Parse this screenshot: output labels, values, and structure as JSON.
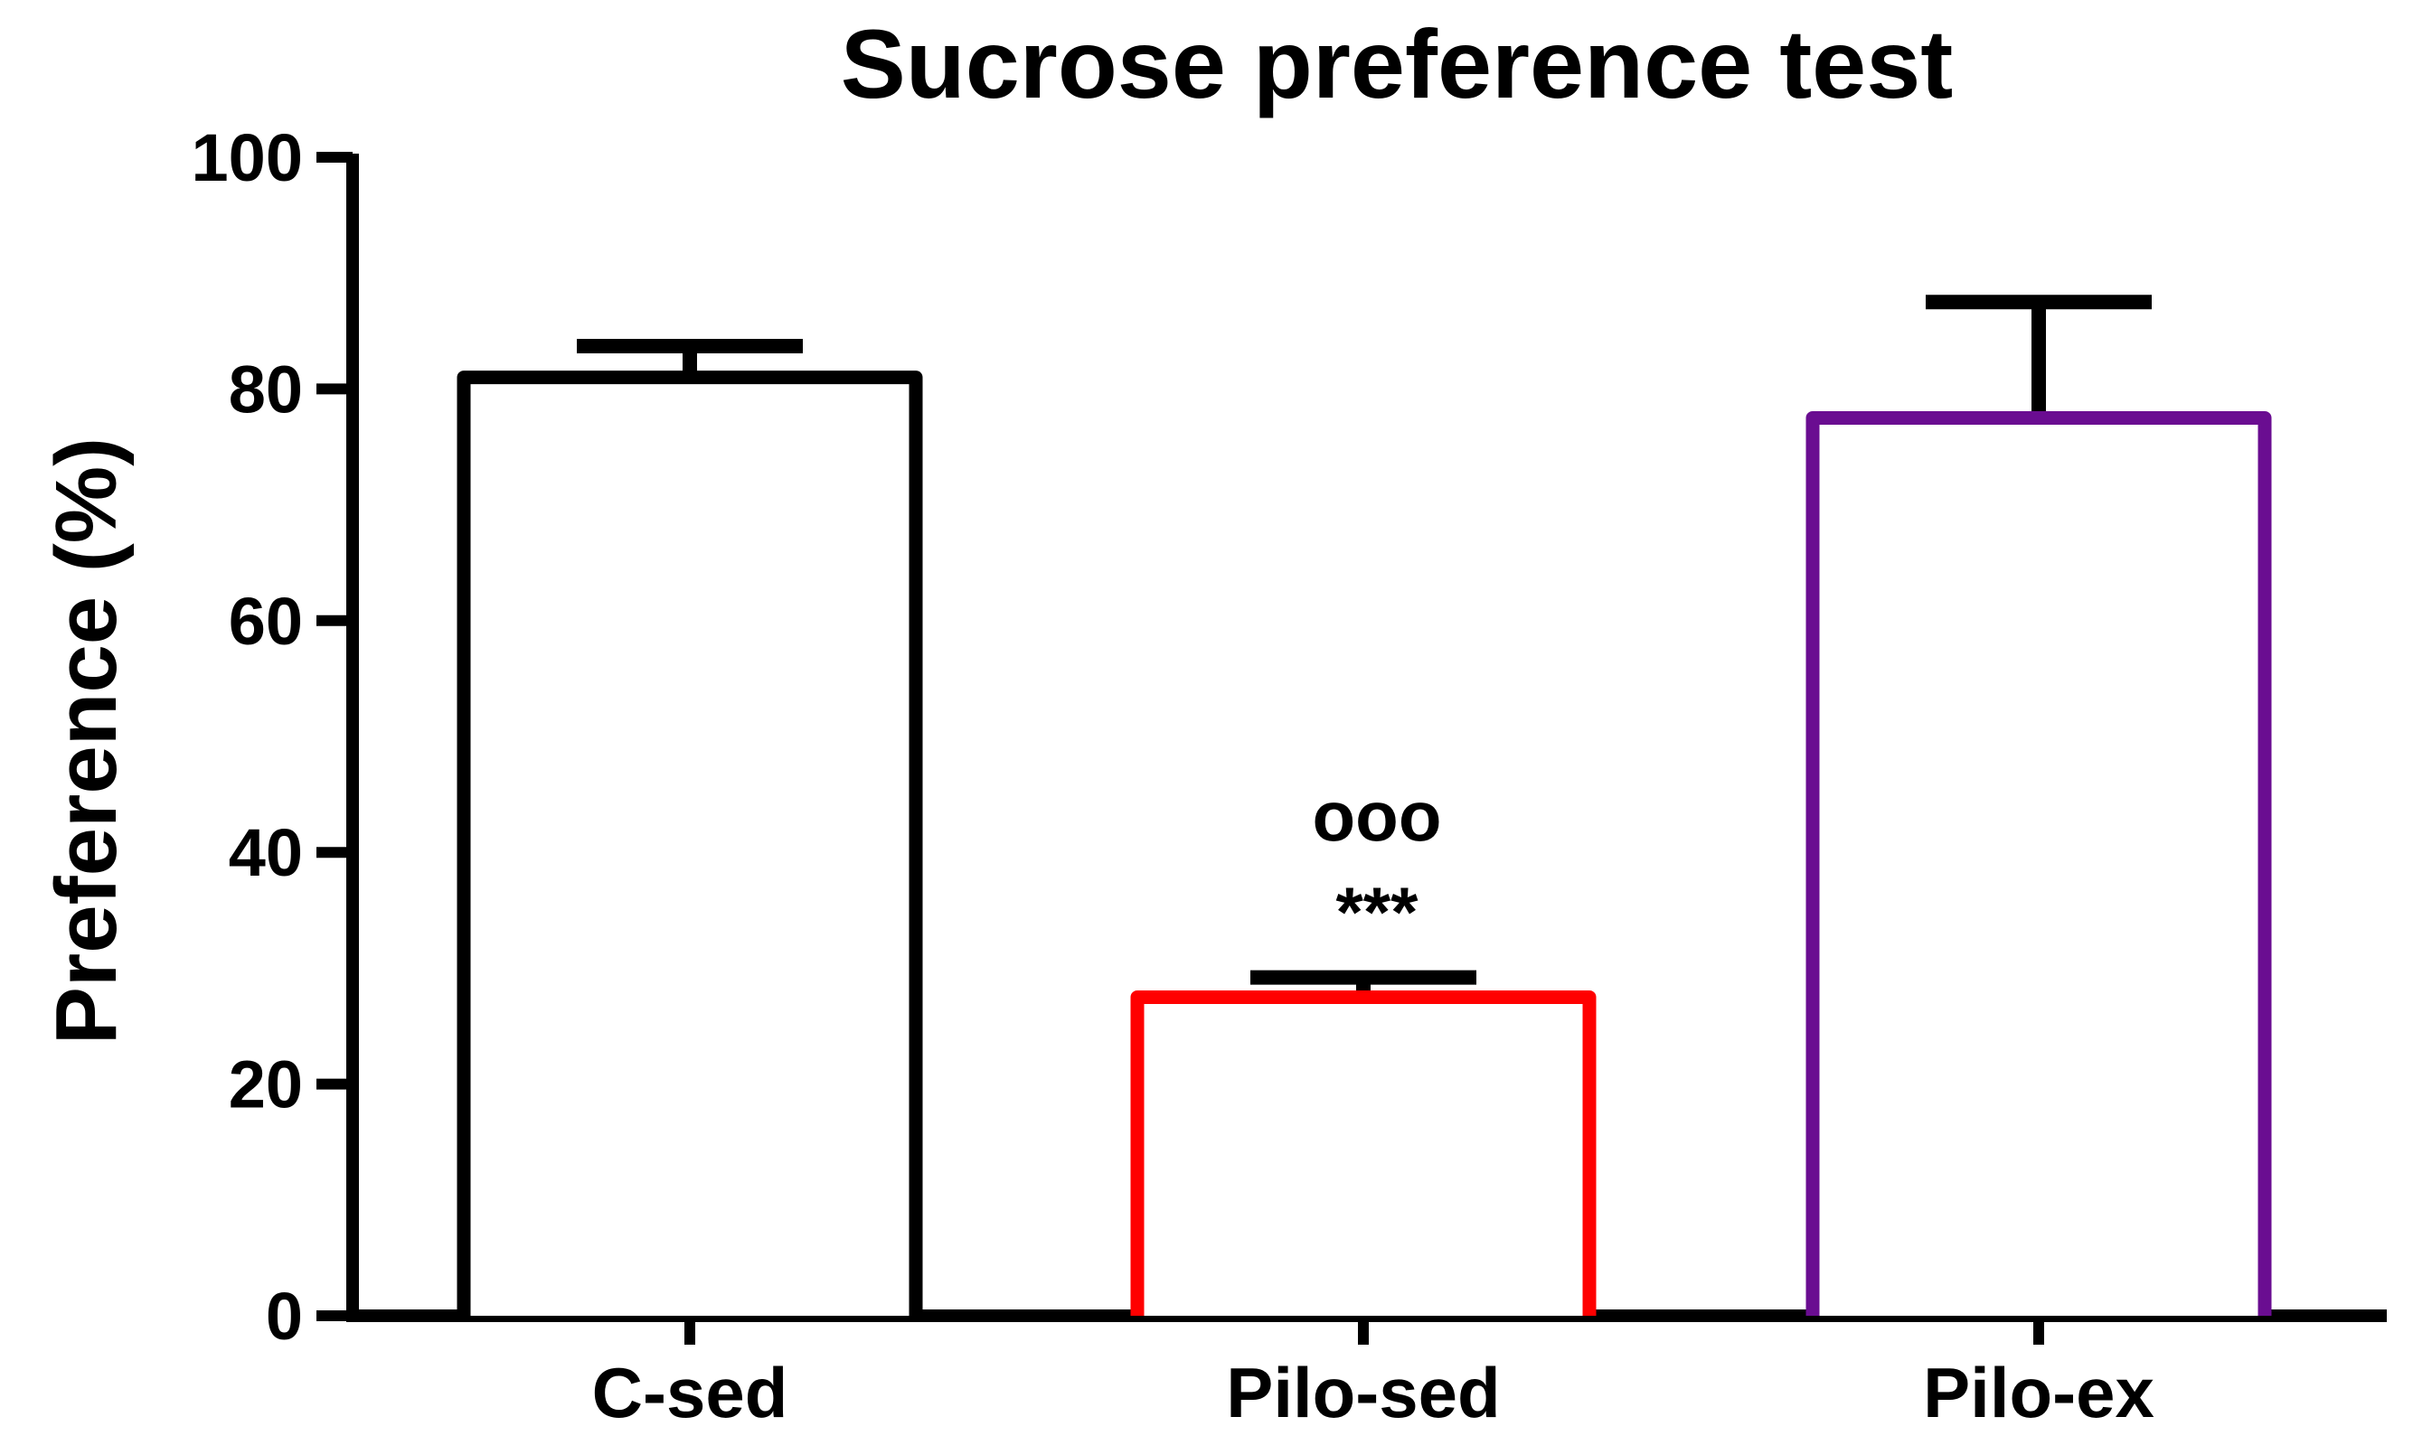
{
  "chart_data": {
    "type": "bar",
    "title": "Sucrose preference test",
    "xlabel": "",
    "ylabel": "Preference (%)",
    "ylim": [
      0,
      100
    ],
    "yticks": [
      "0",
      "20",
      "40",
      "60",
      "80",
      "100"
    ],
    "categories": [
      "C-sed",
      "Pilo-sed",
      "Pilo-ex"
    ],
    "values": [
      81,
      27.5,
      77.5
    ],
    "errors": [
      2.7,
      1.7,
      10
    ],
    "colors": [
      "#000000",
      "#ff0000",
      "#6a0d91"
    ],
    "annotations": [
      {
        "category": "Pilo-sed",
        "lines": [
          "ooo",
          "***"
        ]
      }
    ]
  }
}
